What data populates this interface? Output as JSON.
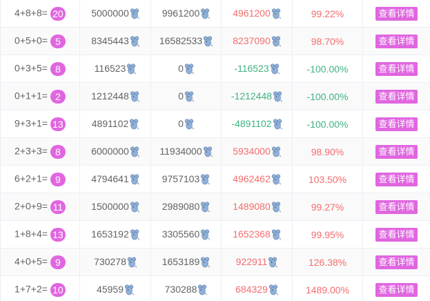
{
  "colors": {
    "badge": "#e066e0",
    "positive": "#f56c6c",
    "negative": "#3fb27f",
    "button": "#e066e0"
  },
  "currency_icon": "mouse-icon",
  "button_label": "查看详情",
  "rows": [
    {
      "formula": "4+8+8=",
      "sum": "20",
      "bet": "5000000",
      "payout": "9961200",
      "profit": "4961200",
      "rate": "99.22%",
      "sign": "pos"
    },
    {
      "formula": "0+5+0=",
      "sum": "5",
      "bet": "8345443",
      "payout": "16582533",
      "profit": "8237090",
      "rate": "98.70%",
      "sign": "pos"
    },
    {
      "formula": "0+3+5=",
      "sum": "8",
      "bet": "116523",
      "payout": "0",
      "profit": "-116523",
      "rate": "-100.00%",
      "sign": "neg"
    },
    {
      "formula": "0+1+1=",
      "sum": "2",
      "bet": "1212448",
      "payout": "0",
      "profit": "-1212448",
      "rate": "-100.00%",
      "sign": "neg"
    },
    {
      "formula": "9+3+1=",
      "sum": "13",
      "bet": "4891102",
      "payout": "0",
      "profit": "-4891102",
      "rate": "-100.00%",
      "sign": "neg"
    },
    {
      "formula": "2+3+3=",
      "sum": "8",
      "bet": "6000000",
      "payout": "11934000",
      "profit": "5934000",
      "rate": "98.90%",
      "sign": "pos"
    },
    {
      "formula": "6+2+1=",
      "sum": "9",
      "bet": "4794641",
      "payout": "9757103",
      "profit": "4962462",
      "rate": "103.50%",
      "sign": "pos"
    },
    {
      "formula": "2+0+9=",
      "sum": "11",
      "bet": "1500000",
      "payout": "2989080",
      "profit": "1489080",
      "rate": "99.27%",
      "sign": "pos"
    },
    {
      "formula": "1+8+4=",
      "sum": "13",
      "bet": "1653192",
      "payout": "3305560",
      "profit": "1652368",
      "rate": "99.95%",
      "sign": "pos"
    },
    {
      "formula": "4+0+5=",
      "sum": "9",
      "bet": "730278",
      "payout": "1653189",
      "profit": "922911",
      "rate": "126.38%",
      "sign": "pos"
    },
    {
      "formula": "1+7+2=",
      "sum": "10",
      "bet": "45959",
      "payout": "730288",
      "profit": "684329",
      "rate": "1489.00%",
      "sign": "pos"
    }
  ]
}
